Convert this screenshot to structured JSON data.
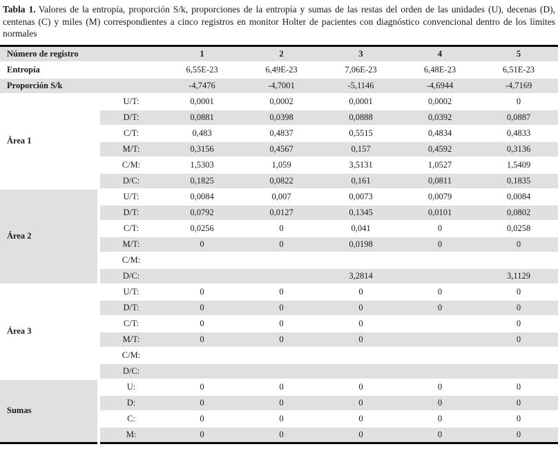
{
  "caption": {
    "label": "Tabla 1.",
    "text": "Valores de la entropía, proporción S/k, proporciones de la entropía y sumas de las restas del orden de las unidades (U), decenas (D), centenas (C) y miles (M) correspondientes a cinco registros en monitor Holter de pacientes con diagnóstico convencional dentro de los límites normales"
  },
  "colors": {
    "stripe": "#e0e0e0",
    "rule": "#050505",
    "text": "#1a1a1a"
  },
  "table": {
    "header": {
      "label": "Número de registro",
      "columns": [
        "1",
        "2",
        "3",
        "4",
        "5"
      ]
    },
    "top_rows": [
      {
        "label": "Entropía",
        "values": [
          "6,55E-23",
          "6,49E-23",
          "7,06E-23",
          "6,48E-23",
          "6,51E-23"
        ]
      },
      {
        "label": "Proporción S/k",
        "values": [
          "-4,7476",
          "-4,7001",
          "-5,1146",
          "-4,6944",
          "-4,7169"
        ]
      }
    ],
    "groups": [
      {
        "label": "Área 1",
        "shaded": false,
        "rows": [
          {
            "sub": "U/T:",
            "values": [
              "0,0001",
              "0,0002",
              "0,0001",
              "0,0002",
              "0"
            ]
          },
          {
            "sub": "D/T:",
            "values": [
              "0,0881",
              "0,0398",
              "0,0888",
              "0,0392",
              "0,0887"
            ]
          },
          {
            "sub": "C/T:",
            "values": [
              "0,483",
              "0,4837",
              "0,5515",
              "0,4834",
              "0,4833"
            ]
          },
          {
            "sub": "M/T:",
            "values": [
              "0,3156",
              "0,4567",
              "0,157",
              "0,4592",
              "0,3136"
            ]
          },
          {
            "sub": "C/M:",
            "values": [
              "1,5303",
              "1,059",
              "3,5131",
              "1,0527",
              "1,5409"
            ]
          },
          {
            "sub": "D/C:",
            "values": [
              "0,1825",
              "0,0822",
              "0,161",
              "0,0811",
              "0,1835"
            ]
          }
        ]
      },
      {
        "label": "Área 2",
        "shaded": true,
        "rows": [
          {
            "sub": "U/T:",
            "values": [
              "0,0084",
              "0,007",
              "0,0073",
              "0,0079",
              "0,0084"
            ]
          },
          {
            "sub": "D/T:",
            "values": [
              "0,0792",
              "0,0127",
              "0,1345",
              "0,0101",
              "0,0802"
            ]
          },
          {
            "sub": "C/T:",
            "values": [
              "0,0256",
              "0",
              "0,041",
              "0",
              "0,0258"
            ]
          },
          {
            "sub": "M/T:",
            "values": [
              "0",
              "0",
              "0,0198",
              "0",
              "0"
            ]
          },
          {
            "sub": "C/M:",
            "values": [
              "",
              "",
              "",
              "",
              ""
            ]
          },
          {
            "sub": "D/C:",
            "values": [
              "",
              "",
              "3,2814",
              "",
              "3,1129"
            ]
          }
        ]
      },
      {
        "label": "Área 3",
        "shaded": false,
        "rows": [
          {
            "sub": "U/T:",
            "values": [
              "0",
              "0",
              "0",
              "0",
              "0"
            ]
          },
          {
            "sub": "D/T:",
            "values": [
              "0",
              "0",
              "0",
              "0",
              "0"
            ]
          },
          {
            "sub": "C/T:",
            "values": [
              "0",
              "0",
              "0",
              "",
              "0"
            ]
          },
          {
            "sub": "M/T:",
            "values": [
              "0",
              "0",
              "0",
              "",
              "0"
            ]
          },
          {
            "sub": "C/M:",
            "values": [
              "",
              "",
              "",
              "",
              ""
            ]
          },
          {
            "sub": "D/C:",
            "values": [
              "",
              "",
              "",
              "",
              ""
            ]
          }
        ]
      },
      {
        "label": "Sumas",
        "shaded": true,
        "rows": [
          {
            "sub": "U:",
            "values": [
              "0",
              "0",
              "0",
              "0",
              "0"
            ]
          },
          {
            "sub": "D:",
            "values": [
              "0",
              "0",
              "0",
              "0",
              "0"
            ]
          },
          {
            "sub": "C:",
            "values": [
              "0",
              "0",
              "0",
              "0",
              "0"
            ]
          },
          {
            "sub": "M:",
            "values": [
              "0",
              "0",
              "0",
              "0",
              "0"
            ]
          }
        ]
      }
    ]
  }
}
